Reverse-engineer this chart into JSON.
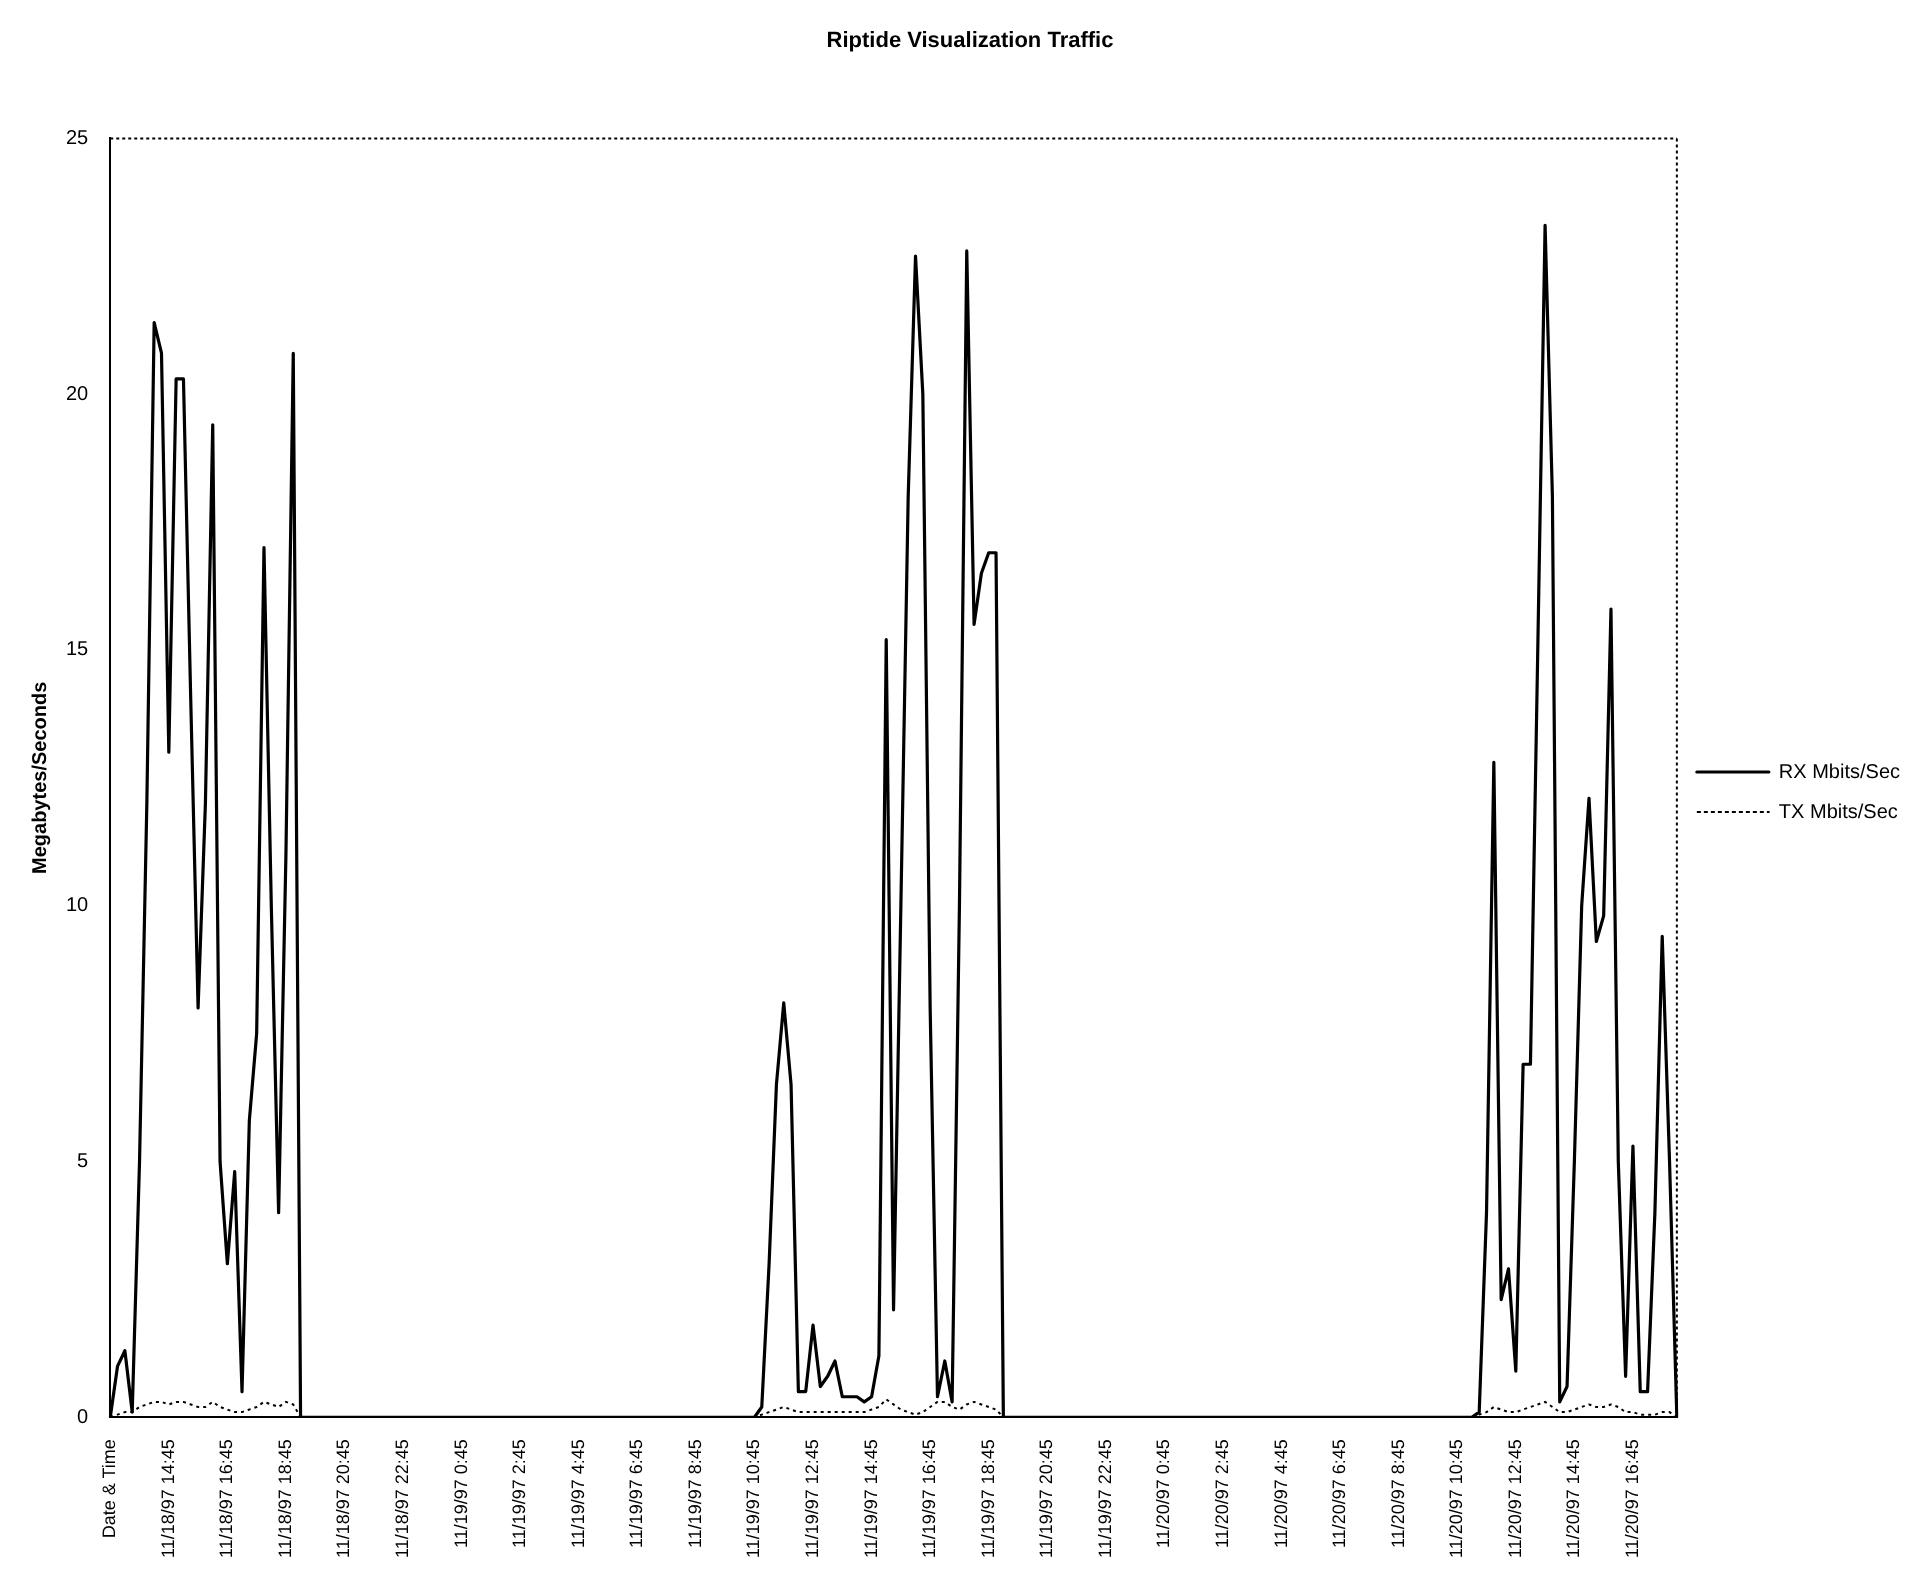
{
  "chart_data": {
    "type": "line",
    "title": "Riptide Visualization Traffic",
    "ylabel": "Megabytes/Seconds",
    "categories": [
      "Date & Time",
      null,
      null,
      null,
      null,
      null,
      null,
      null,
      "11/18/97 14:45",
      null,
      null,
      null,
      null,
      null,
      null,
      null,
      "11/18/97 16:45",
      null,
      null,
      null,
      null,
      null,
      null,
      null,
      "11/18/97 18:45",
      null,
      null,
      null,
      null,
      null,
      null,
      null,
      "11/18/97 20:45",
      null,
      null,
      null,
      null,
      null,
      null,
      null,
      "11/18/97 22:45",
      null,
      null,
      null,
      null,
      null,
      null,
      null,
      "11/19/97 0:45",
      null,
      null,
      null,
      null,
      null,
      null,
      null,
      "11/19/97 2:45",
      null,
      null,
      null,
      null,
      null,
      null,
      null,
      "11/19/97 4:45",
      null,
      null,
      null,
      null,
      null,
      null,
      null,
      "11/19/97 6:45",
      null,
      null,
      null,
      null,
      null,
      null,
      null,
      "11/19/97 8:45",
      null,
      null,
      null,
      null,
      null,
      null,
      null,
      "11/19/97 10:45",
      null,
      null,
      null,
      null,
      null,
      null,
      null,
      "11/19/97 12:45",
      null,
      null,
      null,
      null,
      null,
      null,
      null,
      "11/19/97 14:45",
      null,
      null,
      null,
      null,
      null,
      null,
      null,
      "11/19/97 16:45",
      null,
      null,
      null,
      null,
      null,
      null,
      null,
      "11/19/97 18:45",
      null,
      null,
      null,
      null,
      null,
      null,
      null,
      "11/19/97 20:45",
      null,
      null,
      null,
      null,
      null,
      null,
      null,
      "11/19/97 22:45",
      null,
      null,
      null,
      null,
      null,
      null,
      null,
      "11/20/97 0:45",
      null,
      null,
      null,
      null,
      null,
      null,
      null,
      "11/20/97 2:45",
      null,
      null,
      null,
      null,
      null,
      null,
      null,
      "11/20/97 4:45",
      null,
      null,
      null,
      null,
      null,
      null,
      null,
      "11/20/97 6:45",
      null,
      null,
      null,
      null,
      null,
      null,
      null,
      "11/20/97 8:45",
      null,
      null,
      null,
      null,
      null,
      null,
      null,
      "11/20/97 10:45",
      null,
      null,
      null,
      null,
      null,
      null,
      null,
      "11/20/97 12:45",
      null,
      null,
      null,
      null,
      null,
      null,
      null,
      "11/20/97 14:45",
      null,
      null,
      null,
      null,
      null,
      null,
      null,
      "11/20/97 16:45",
      null,
      null,
      null,
      null,
      null,
      null
    ],
    "series": [
      {
        "name": "RX Mbits/Sec",
        "color": "#000000",
        "line_style": "solid",
        "values": [
          0,
          1.0,
          1.3,
          0.1,
          5,
          12,
          21.4,
          20.8,
          13,
          20.3,
          20.3,
          14,
          8,
          12,
          19.4,
          5,
          3,
          4.8,
          0.5,
          5.8,
          7.5,
          17,
          10,
          4,
          11,
          20.8,
          0,
          0,
          0,
          0,
          0,
          0,
          0,
          0,
          0,
          0,
          0,
          0,
          0,
          0,
          0,
          0,
          0,
          0,
          0,
          0,
          0,
          0,
          0,
          0,
          0,
          0,
          0,
          0,
          0,
          0,
          0,
          0,
          0,
          0,
          0,
          0,
          0,
          0,
          0,
          0,
          0,
          0,
          0,
          0,
          0,
          0,
          0,
          0,
          0,
          0,
          0,
          0,
          0,
          0,
          0,
          0,
          0,
          0,
          0,
          0,
          0,
          0,
          0,
          0.2,
          3,
          6.5,
          8.1,
          6.5,
          0.5,
          0.5,
          1.8,
          0.6,
          0.8,
          1.1,
          0.4,
          0.4,
          0.4,
          0.3,
          0.4,
          1.2,
          15.2,
          2.1,
          10,
          18,
          22.7,
          20,
          8,
          0.4,
          1.1,
          0.3,
          10,
          22.8,
          15.5,
          16.5,
          16.9,
          16.9,
          0,
          0,
          0,
          0,
          0,
          0,
          0,
          0,
          0,
          0,
          0,
          0,
          0,
          0,
          0,
          0,
          0,
          0,
          0,
          0,
          0,
          0,
          0,
          0,
          0,
          0,
          0,
          0,
          0,
          0,
          0,
          0,
          0,
          0,
          0,
          0,
          0,
          0,
          0,
          0,
          0,
          0,
          0,
          0,
          0,
          0,
          0,
          0,
          0,
          0,
          0,
          0,
          0,
          0,
          0,
          0,
          0,
          0,
          0,
          0,
          0,
          0,
          0,
          0,
          0,
          0.1,
          4,
          12.8,
          2.3,
          2.9,
          0.9,
          6.9,
          6.9,
          15,
          23.3,
          18,
          0.3,
          0.6,
          5,
          10,
          12.1,
          9.3,
          9.8,
          15.8,
          5,
          0.8,
          5.3,
          0.5,
          0.5,
          4,
          9.4,
          5,
          0
        ]
      },
      {
        "name": "TX Mbits/Sec",
        "color": "#000000",
        "line_style": "dotted",
        "values": [
          0,
          0.05,
          0.1,
          0.1,
          0.2,
          0.25,
          0.3,
          0.3,
          0.25,
          0.3,
          0.3,
          0.25,
          0.2,
          0.2,
          0.3,
          0.2,
          0.15,
          0.1,
          0.1,
          0.15,
          0.2,
          0.3,
          0.25,
          0.2,
          0.3,
          0.25,
          0,
          0,
          0,
          0,
          0,
          0,
          0,
          0,
          0,
          0,
          0,
          0,
          0,
          0,
          0,
          0,
          0,
          0,
          0,
          0,
          0,
          0,
          0,
          0,
          0,
          0,
          0,
          0,
          0,
          0,
          0,
          0,
          0,
          0,
          0,
          0,
          0,
          0,
          0,
          0,
          0,
          0,
          0,
          0,
          0,
          0,
          0,
          0,
          0,
          0,
          0,
          0,
          0,
          0,
          0,
          0,
          0,
          0,
          0,
          0,
          0,
          0,
          0,
          0.05,
          0.1,
          0.15,
          0.2,
          0.15,
          0.1,
          0.1,
          0.1,
          0.1,
          0.1,
          0.1,
          0.1,
          0.1,
          0.1,
          0.1,
          0.15,
          0.2,
          0.35,
          0.25,
          0.15,
          0.1,
          0.05,
          0.1,
          0.2,
          0.3,
          0.3,
          0.2,
          0.15,
          0.25,
          0.3,
          0.25,
          0.2,
          0.15,
          0,
          0,
          0,
          0,
          0,
          0,
          0,
          0,
          0,
          0,
          0,
          0,
          0,
          0,
          0,
          0,
          0,
          0,
          0,
          0,
          0,
          0,
          0,
          0,
          0,
          0,
          0,
          0,
          0,
          0,
          0,
          0,
          0,
          0,
          0,
          0,
          0,
          0,
          0,
          0,
          0,
          0,
          0,
          0,
          0,
          0,
          0,
          0,
          0,
          0,
          0,
          0,
          0,
          0,
          0,
          0,
          0,
          0,
          0,
          0,
          0,
          0,
          0,
          0,
          0,
          0.05,
          0.1,
          0.2,
          0.15,
          0.1,
          0.1,
          0.15,
          0.2,
          0.25,
          0.3,
          0.2,
          0.1,
          0.1,
          0.15,
          0.2,
          0.25,
          0.2,
          0.2,
          0.25,
          0.2,
          0.1,
          0.1,
          0.05,
          0.05,
          0.05,
          0.1,
          0.1,
          0
        ]
      }
    ],
    "ylim": [
      0,
      25
    ],
    "yticks": [
      0,
      5,
      10,
      15,
      20,
      25
    ],
    "grid": false,
    "legend": "right",
    "marker": "none"
  }
}
